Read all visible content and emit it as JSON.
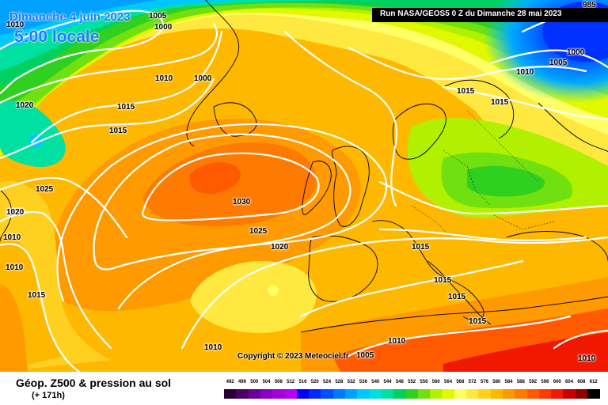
{
  "header": {
    "date_label": "Dimanche 4 juin 2023",
    "time_label": "5:00 locale",
    "run_label": "Run NASA/GEOS5 0 Z du Dimanche 28 mai 2023"
  },
  "footer": {
    "title": "Géop. Z500 & pression au sol",
    "forecast_offset": "(+ 171h)",
    "copyright": "Copyright © 2023 Meteociel.fr"
  },
  "isobar_labels": [
    "1010",
    "1005",
    "1000",
    "1020",
    "1015",
    "1010",
    "1000",
    "1010",
    "1015",
    "1020",
    "1025",
    "1020",
    "1010",
    "1010",
    "1015",
    "1030",
    "1025",
    "1020",
    "1015",
    "1015",
    "1015",
    "1015",
    "1015",
    "1015",
    "1010",
    "1005",
    "1010",
    "1010",
    "1005",
    "1000",
    "985"
  ],
  "legend_scale": {
    "values": [
      "492",
      "496",
      "500",
      "504",
      "508",
      "512",
      "516",
      "520",
      "524",
      "528",
      "532",
      "536",
      "540",
      "544",
      "548",
      "552",
      "556",
      "560",
      "564",
      "568",
      "572",
      "576",
      "580",
      "584",
      "588",
      "592",
      "596",
      "600",
      "604",
      "608",
      "612"
    ],
    "colors": [
      "#2a0033",
      "#4b0066",
      "#6a0099",
      "#8d00c2",
      "#a400d9",
      "#b800f0",
      "#0000ff",
      "#0028ff",
      "#0050ff",
      "#0078ff",
      "#00a0ff",
      "#00c8ff",
      "#00e0e0",
      "#00e0a0",
      "#00d060",
      "#30d020",
      "#70e010",
      "#b0f000",
      "#e0f800",
      "#ffff66",
      "#ffe840",
      "#ffd020",
      "#ffb800",
      "#ff9a00",
      "#ff7a00",
      "#ff5a00",
      "#ff3a00",
      "#f01800",
      "#c80000",
      "#900000",
      "#000000"
    ]
  },
  "colors": {
    "title_blue": "#1e7cff",
    "isobar": "#ffffff"
  }
}
